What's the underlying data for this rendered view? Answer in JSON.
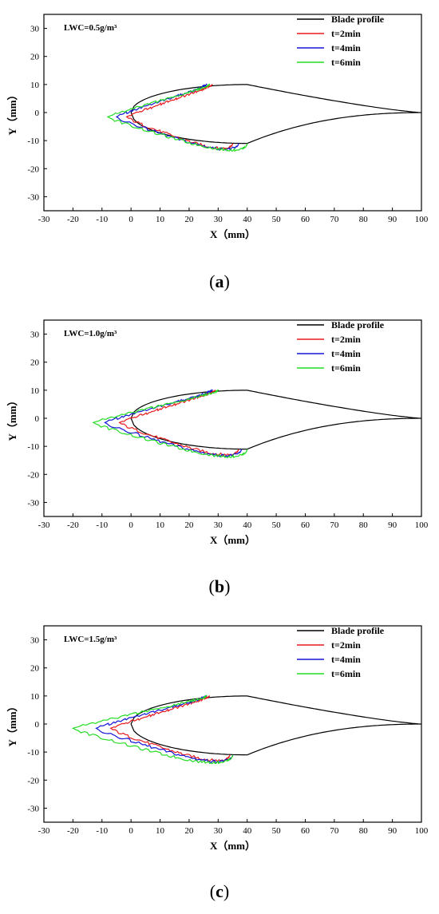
{
  "chart_data": [
    {
      "type": "line",
      "panel_label": "a",
      "annotation": "LWC=0.5g/m³",
      "xlabel": "X（mm）",
      "ylabel": "Y（mm）",
      "xlim": [
        -30,
        100
      ],
      "ylim": [
        -35,
        35
      ],
      "xticks": [
        -30,
        -20,
        -10,
        0,
        10,
        20,
        30,
        40,
        50,
        60,
        70,
        80,
        90,
        100
      ],
      "yticks": [
        -30,
        -20,
        -10,
        0,
        10,
        20,
        30
      ],
      "legend_position": "top-right",
      "series": [
        {
          "name": "Blade profile",
          "color": "#000000",
          "kind": "profile"
        },
        {
          "name": "t=2min",
          "color": "#e8191c",
          "kind": "ice",
          "lead_x": -1.5,
          "front_x": 28,
          "front_y": 10,
          "rear_x": 35,
          "rear_y": -11
        },
        {
          "name": "t=4min",
          "color": "#1515d9",
          "kind": "ice",
          "lead_x": -5,
          "front_x": 26,
          "front_y": 10,
          "rear_x": 37,
          "rear_y": -11
        },
        {
          "name": "t=6min",
          "color": "#22dd22",
          "kind": "ice",
          "lead_x": -8,
          "front_x": 27,
          "front_y": 10,
          "rear_x": 40,
          "rear_y": -11
        }
      ]
    },
    {
      "type": "line",
      "panel_label": "b",
      "annotation": "LWC=1.0g/m³",
      "xlabel": "X（mm）",
      "ylabel": "Y（mm）",
      "xlim": [
        -30,
        100
      ],
      "ylim": [
        -35,
        35
      ],
      "xticks": [
        -30,
        -20,
        -10,
        0,
        10,
        20,
        30,
        40,
        50,
        60,
        70,
        80,
        90,
        100
      ],
      "yticks": [
        -30,
        -20,
        -10,
        0,
        10,
        20,
        30
      ],
      "legend_position": "top-right",
      "series": [
        {
          "name": "Blade profile",
          "color": "#000000",
          "kind": "profile"
        },
        {
          "name": "t=2min",
          "color": "#e8191c",
          "kind": "ice",
          "lead_x": -4,
          "front_x": 29,
          "front_y": 10,
          "rear_x": 37,
          "rear_y": -11
        },
        {
          "name": "t=4min",
          "color": "#1515d9",
          "kind": "ice",
          "lead_x": -9,
          "front_x": 28,
          "front_y": 10,
          "rear_x": 38,
          "rear_y": -11
        },
        {
          "name": "t=6min",
          "color": "#22dd22",
          "kind": "ice",
          "lead_x": -13,
          "front_x": 30,
          "front_y": 10,
          "rear_x": 40,
          "rear_y": -11
        }
      ]
    },
    {
      "type": "line",
      "panel_label": "c",
      "annotation": "LWC=1.5g/m³",
      "xlabel": "X（mm）",
      "ylabel": "Y（mm）",
      "xlim": [
        -30,
        100
      ],
      "ylim": [
        -35,
        35
      ],
      "xticks": [
        -30,
        -20,
        -10,
        0,
        10,
        20,
        30,
        40,
        50,
        60,
        70,
        80,
        90,
        100
      ],
      "yticks": [
        -30,
        -20,
        -10,
        0,
        10,
        20,
        30
      ],
      "legend_position": "top-right",
      "series": [
        {
          "name": "Blade profile",
          "color": "#000000",
          "kind": "profile"
        },
        {
          "name": "t=2min",
          "color": "#e8191c",
          "kind": "ice",
          "lead_x": -7,
          "front_x": 27,
          "front_y": 10,
          "rear_x": 34,
          "rear_y": -11
        },
        {
          "name": "t=4min",
          "color": "#1515d9",
          "kind": "ice",
          "lead_x": -12,
          "front_x": 26,
          "front_y": 10,
          "rear_x": 35,
          "rear_y": -11
        },
        {
          "name": "t=6min",
          "color": "#22dd22",
          "kind": "ice",
          "lead_x": -20,
          "front_x": 26,
          "front_y": 10,
          "rear_x": 35,
          "rear_y": -11
        }
      ]
    }
  ]
}
